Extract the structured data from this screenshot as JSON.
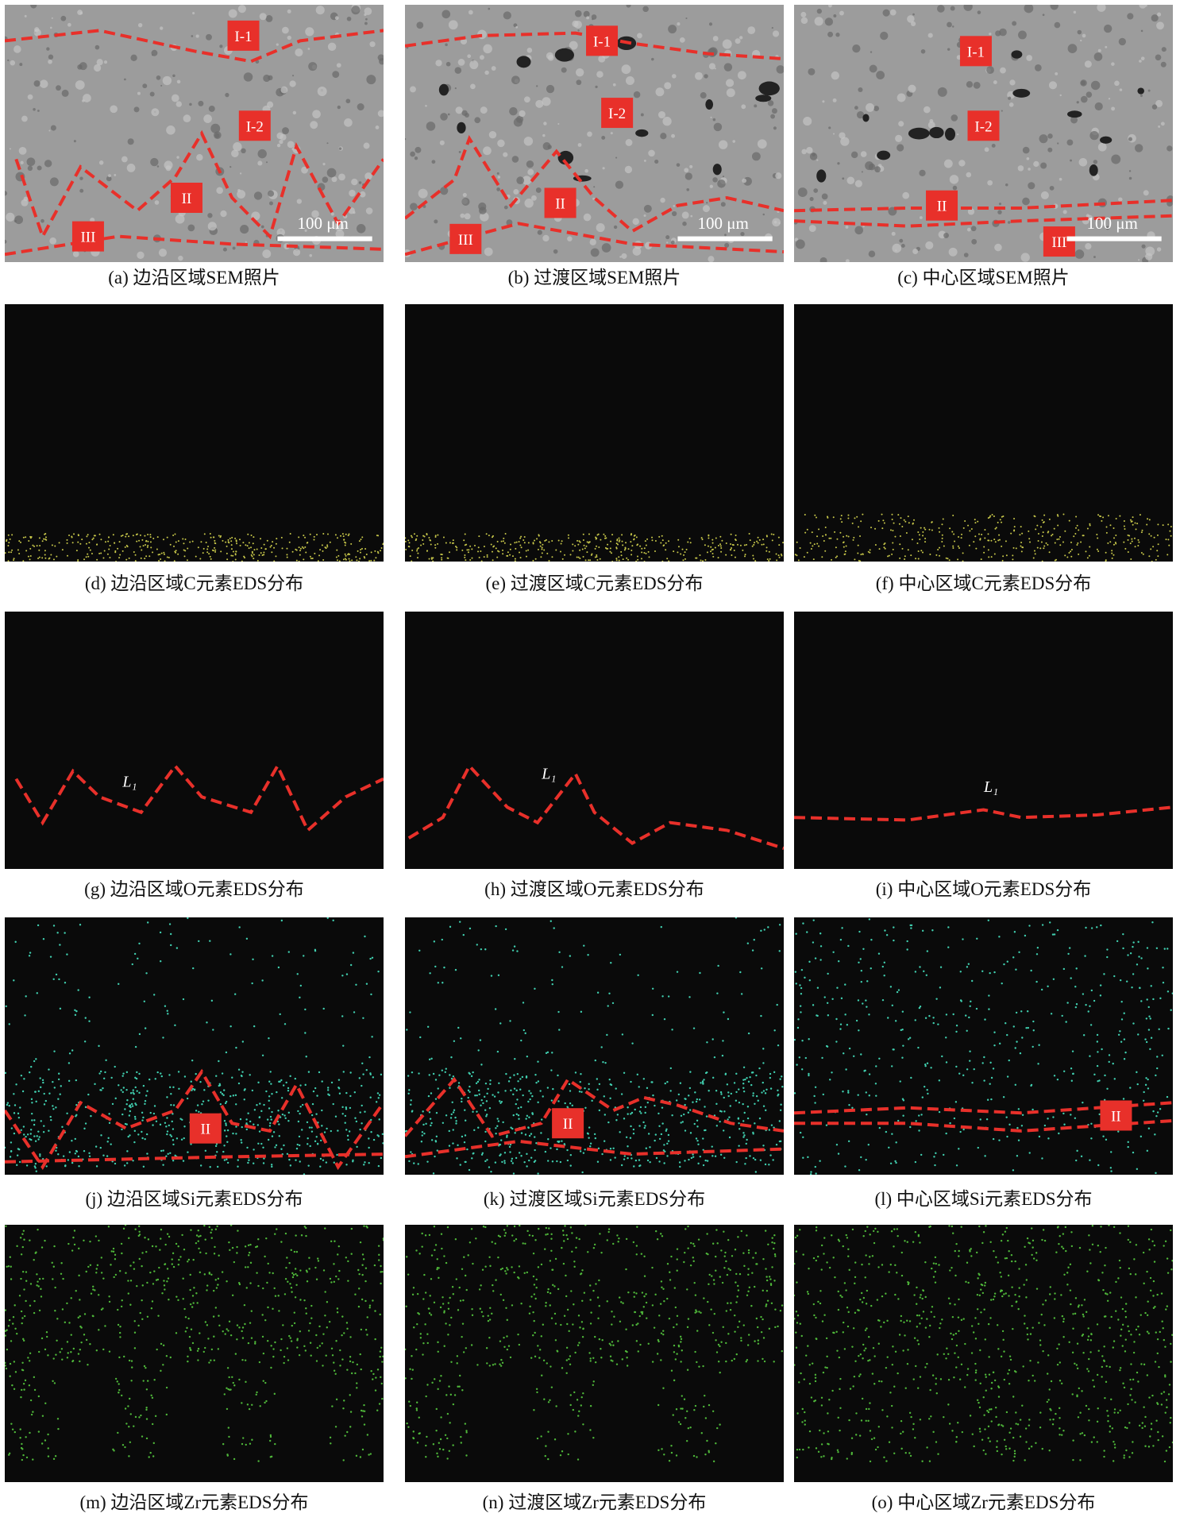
{
  "panels": [
    {
      "caption": "(a) 边沿区域SEM照片",
      "labels": [
        "I-1",
        "I-2",
        "II",
        "III"
      ],
      "scale_bar": "100 μm"
    },
    {
      "caption": "(b) 过渡区域SEM照片",
      "labels": [
        "I-1",
        "I-2",
        "II",
        "III"
      ],
      "scale_bar": "100 μm"
    },
    {
      "caption": "(c) 中心区域SEM照片",
      "labels": [
        "I-1",
        "I-2",
        "II",
        "III"
      ],
      "scale_bar": "100 μm"
    },
    {
      "caption": "(d) 边沿区域C元素EDS分布"
    },
    {
      "caption": "(e) 过渡区域C元素EDS分布"
    },
    {
      "caption": "(f) 中心区域C元素EDS分布"
    },
    {
      "caption": "(g) 边沿区域O元素EDS分布",
      "labels": [
        "L₁"
      ]
    },
    {
      "caption": "(h) 过渡区域O元素EDS分布",
      "labels": [
        "L₁"
      ]
    },
    {
      "caption": "(i) 中心区域O元素EDS分布",
      "labels": [
        "L₁"
      ]
    },
    {
      "caption": "(j) 边沿区域Si元素EDS分布",
      "labels": [
        "II"
      ]
    },
    {
      "caption": "(k) 过渡区域Si元素EDS分布",
      "labels": [
        "II"
      ]
    },
    {
      "caption": "(l) 中心区域Si元素EDS分布",
      "labels": [
        "II"
      ]
    },
    {
      "caption": "(m) 边沿区域Zr元素EDS分布"
    },
    {
      "caption": "(n) 过渡区域Zr元素EDS分布"
    },
    {
      "caption": "(o) 中心区域Zr元素EDS分布"
    }
  ]
}
